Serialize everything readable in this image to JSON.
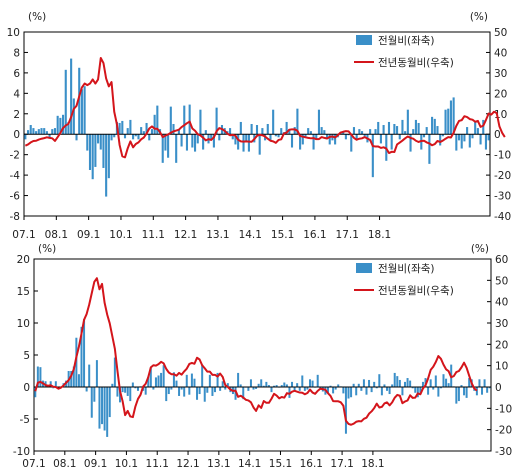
{
  "chart_data": [
    {
      "type": "bar+line",
      "left_unit": "(%)",
      "right_unit": "(%)",
      "x_ticks": [
        "07.1",
        "08.1",
        "09.1",
        "10.1",
        "11.1",
        "12.1",
        "13.1",
        "14.1",
        "15.1",
        "16.1",
        "17.1",
        "18.1"
      ],
      "left_ylim": [
        -8,
        10
      ],
      "left_yticks": [
        "10",
        "8",
        "6",
        "4",
        "2",
        "0",
        "-2",
        "-4",
        "-6",
        "-8"
      ],
      "right_ylim": [
        -40,
        50
      ],
      "right_yticks": [
        "50",
        "40",
        "30",
        "20",
        "10",
        "0",
        "-10",
        "-20",
        "-30",
        "-40"
      ],
      "grid": false,
      "legend_position": "top-right",
      "series": [
        {
          "name": "전월비(좌축)",
          "kind": "bar",
          "axis": "left",
          "color": "#3a8fc8",
          "values": [
            -0.5,
            0.4,
            0.9,
            0.6,
            0.3,
            0.5,
            0.6,
            0.6,
            0.3,
            -0.3,
            0.5,
            0.6,
            1.8,
            1.6,
            1.9,
            6.3,
            1.2,
            7.4,
            3.5,
            -0.6,
            6.5,
            4.4,
            4.7,
            -1.6,
            -3.5,
            -4.4,
            -3.2,
            -0.9,
            -1.5,
            -3.3,
            -6.1,
            -4.3,
            -0.6,
            -0.3,
            1.2,
            1.1,
            1.3,
            -0.4,
            0.6,
            1.4,
            -0.5,
            -0.2,
            -0.5,
            0.7,
            0.3,
            1.1,
            -0.6,
            0.5,
            1.9,
            2.8,
            0.5,
            -2.8,
            -1.6,
            -2.3,
            2.7,
            1.0,
            -2.8,
            0.4,
            -1.2,
            2.8,
            -1.6,
            2.9,
            -1.3,
            -1.7,
            -0.9,
            2.4,
            -1.5,
            0.4,
            -0.9,
            -0.5,
            -1.3,
            2.6,
            -0.6,
            0.9,
            0.6,
            0.3,
            0.6,
            -0.5,
            -1.0,
            -1.5,
            1.2,
            -1.7,
            -0.7,
            -1.7,
            1.0,
            -0.8,
            0.9,
            -2.0,
            0.6,
            -0.6,
            1.0,
            -0.6,
            2.4,
            -0.2,
            -0.3,
            0.6,
            0.2,
            1.2,
            0.5,
            -1.3,
            0.7,
            2.5,
            -1.5,
            -1.0,
            -0.3,
            0.6,
            0.3,
            -1.5,
            -0.5,
            2.4,
            0.7,
            0.4,
            -0.4,
            -1.0,
            -0.6,
            -1.0,
            -0.3,
            0.2,
            0.3,
            -0.5,
            -0.1,
            -1.7,
            0.7,
            -0.5,
            0.5,
            0.3,
            -0.2,
            -0.8,
            0.5,
            -4.2,
            0.5,
            1.2,
            -0.9,
            0.9,
            -2.6,
            1.2,
            -1.5,
            1.0,
            0.8,
            -0.5,
            1.4,
            0.3,
            2.4,
            -1.7,
            0.5,
            1.4,
            1.1,
            -1.5,
            -0.3,
            0.7,
            -2.9,
            1.7,
            1.5,
            0.8,
            -1.1,
            -0.2,
            2.4,
            2.5,
            3.3,
            3.6,
            -1.6,
            -0.6,
            -1.4,
            -0.7,
            0.7,
            -1.3,
            -0.4,
            1.2,
            0.6,
            -1.0,
            1.4,
            -1.5,
            -0.6
          ],
          "mark_color": "#3a8fc8"
        },
        {
          "name": "전년동월비(우축)",
          "kind": "line",
          "axis": "right",
          "color": "#d4151b",
          "values": [
            -5.6,
            -5.0,
            -4.0,
            -3.3,
            -3.2,
            -2.6,
            -2.2,
            -1.9,
            -1.5,
            -1.8,
            -2.0,
            -3.3,
            -1.4,
            0.6,
            3.0,
            4.3,
            5.1,
            8.4,
            12.4,
            13.9,
            18.5,
            22.9,
            24.8,
            24.0,
            24.8,
            26.8,
            24.8,
            26.8,
            37.3,
            34.8,
            27.2,
            23.4,
            25.5,
            11.0,
            4.8,
            -5.3,
            -10.8,
            -11.3,
            -6.9,
            -3.5,
            -6.4,
            -4.8,
            -4.0,
            -2.5,
            -1.6,
            0.3,
            2.8,
            3.8,
            2.7,
            2.7,
            1.0,
            -1.4,
            -0.7,
            -0.1,
            0.7,
            1.4,
            1.8,
            2.2,
            3.5,
            4.4,
            5.4,
            6.2,
            2.8,
            1.7,
            0.0,
            -0.6,
            -1.7,
            -3.0,
            -2.4,
            -2.8,
            -1.5,
            1.5,
            3.0,
            2.5,
            1.7,
            0.3,
            -0.5,
            -0.3,
            -0.7,
            -2.7,
            -3.5,
            -3.6,
            -3.5,
            -3.6,
            -3.7,
            -2.4,
            -0.8,
            -0.3,
            -0.5,
            -1.1,
            -2.2,
            -3.2,
            -3.5,
            -4.2,
            -2.8,
            -2.5,
            0.4,
            0.8,
            2.2,
            2.4,
            2.4,
            1.7,
            -0.8,
            -1.2,
            -1.5,
            -1.8,
            -2.0,
            -1.9,
            -2.4,
            -2.4,
            -1.4,
            -1.8,
            -2.1,
            -1.3,
            -1.1,
            -1.6,
            -0.5,
            0.8,
            1.2,
            1.5,
            1.4,
            -0.2,
            -1.8,
            -2.7,
            -2.2,
            -2.0,
            -1.4,
            -2.1,
            -2.8,
            -5.8,
            -6.0,
            -6.0,
            -6.7,
            -6.4,
            -7.0,
            -9.2,
            -8.6,
            -8.7,
            -5.0,
            -4.1,
            -3.1,
            -2.0,
            -1.1,
            -1.8,
            -2.2,
            -3.2,
            -3.8,
            -3.3,
            -3.2,
            -4.0,
            -4.5,
            -5.4,
            -4.8,
            -3.3,
            -3.8,
            -3.1,
            -2.2,
            -1.4,
            -1.6,
            0.7,
            4.1,
            6.5,
            6.9,
            8.8,
            8.4,
            7.4,
            7.1,
            6.1,
            6.5,
            3.6,
            4.2,
            7.0,
            10.1,
            9.6,
            11.0,
            10.3,
            3.8,
            0.7,
            -1.4
          ],
          "mark_color": "#d4151b"
        }
      ]
    },
    {
      "type": "bar+line",
      "left_unit": "(%)",
      "right_unit": "(%)",
      "x_ticks": [
        "07.1",
        "08.1",
        "09.1",
        "10.1",
        "11.1",
        "12.1",
        "13.1",
        "14.1",
        "15.1",
        "16.1",
        "17.1",
        "18.1"
      ],
      "left_ylim": [
        -10,
        20
      ],
      "left_yticks": [
        "20",
        "15",
        "10",
        "5",
        "0",
        "-5",
        "-10"
      ],
      "right_ylim": [
        -30,
        60
      ],
      "right_yticks": [
        "60",
        "50",
        "40",
        "30",
        "20",
        "10",
        "0",
        "-10",
        "-20",
        "-30"
      ],
      "grid": false,
      "legend_position": "top-right",
      "series": [
        {
          "name": "전월비(좌축)",
          "kind": "bar",
          "axis": "left",
          "color": "#3a8fc8",
          "values": [
            -1.6,
            3.2,
            3.1,
            1.0,
            0.9,
            0.3,
            0.9,
            -0.2,
            0.9,
            -0.3,
            0.0,
            0.6,
            1.0,
            2.5,
            2.5,
            3.2,
            7.7,
            2.0,
            9.4,
            10.6,
            -0.7,
            3.5,
            -4.8,
            -2.3,
            4.2,
            -6.5,
            -5.8,
            -6.8,
            -7.8,
            -4.7,
            0.5,
            4.6,
            -1.5,
            -2.4,
            -0.8,
            -0.9,
            -1.4,
            -2.2,
            0.7,
            -0.2,
            -0.6,
            0.1,
            -0.6,
            -1.2,
            1.6,
            3.0,
            -0.4,
            1.5,
            1.8,
            2.2,
            3.4,
            -2.2,
            -1.1,
            -0.4,
            2.3,
            1.0,
            -1.4,
            -0.4,
            -1.5,
            1.9,
            -1.2,
            2.1,
            1.3,
            -2.0,
            -1.1,
            3.5,
            -2.3,
            -0.9,
            1.9,
            -1.4,
            -0.8,
            2.2,
            -0.6,
            0.9,
            -0.4,
            0.6,
            -0.8,
            -1.1,
            -2.0,
            2.2,
            0.4,
            -1.9,
            -0.1,
            -0.6,
            1.2,
            -0.4,
            -0.3,
            0.5,
            1.2,
            0.2,
            0.8,
            0.3,
            -0.8,
            0.2,
            0.3,
            -0.1,
            0.3,
            0.7,
            0.4,
            -1.7,
            0.8,
            -0.6,
            0.6,
            -0.6,
            1.8,
            -0.6,
            -0.4,
            1.2,
            1.0,
            -0.1,
            1.9,
            -0.2,
            -0.7,
            -1.2,
            -0.9,
            0.2,
            -1.0,
            -0.4,
            0.4,
            0.1,
            -1.0,
            -7.3,
            -1.8,
            -1.6,
            0.5,
            -1.3,
            0.5,
            -0.6,
            1.2,
            -1.2,
            1.1,
            -0.8,
            0.8,
            -0.2,
            2.0,
            -1.3,
            0.4,
            -0.6,
            -1.1,
            0.4,
            2.2,
            1.7,
            1.1,
            -1.3,
            0.8,
            1.4,
            1.0,
            -0.2,
            -0.9,
            -1.6,
            -0.9,
            0.8,
            1.4,
            -1.2,
            1.2,
            -0.4,
            1.8,
            -1.5,
            -0.2,
            2.0,
            1.3,
            0.6,
            3.5,
            0.1,
            -2.6,
            -2.2,
            0.3,
            -1.3,
            -1.7,
            1.4,
            1.2,
            -0.6,
            -1.3,
            1.2,
            -1.2,
            1.2,
            -0.9,
            -0.2
          ],
          "mark_color": "#3a8fc8"
        },
        {
          "name": "전년동월비(우축)",
          "kind": "line",
          "axis": "right",
          "color": "#d4151b",
          "values": [
            -2.0,
            2.0,
            2.4,
            1.7,
            0.9,
            0.6,
            0.8,
            0.1,
            0.0,
            -0.8,
            -0.3,
            0.7,
            2.0,
            3.2,
            5.3,
            8.3,
            14.0,
            19.0,
            25.0,
            31.5,
            34.2,
            38.6,
            44.0,
            49.3,
            51.0,
            45.8,
            48.3,
            39.5,
            34.0,
            29.8,
            23.8,
            17.9,
            7.6,
            -1.9,
            -6.6,
            -13.2,
            -11.2,
            -13.8,
            -14.1,
            -9.1,
            -5.6,
            -3.6,
            0.2,
            1.5,
            4.6,
            9.2,
            10.2,
            10.0,
            10.7,
            11.8,
            11.1,
            8.5,
            6.8,
            6.0,
            6.0,
            5.3,
            6.6,
            5.8,
            7.3,
            8.6,
            10.8,
            11.3,
            10.9,
            13.7,
            12.9,
            10.2,
            8.8,
            7.2,
            7.2,
            5.7,
            5.7,
            4.9,
            6.3,
            4.7,
            0.9,
            0.0,
            -1.2,
            -1.8,
            -1.7,
            -4.6,
            -4.1,
            -4.9,
            -6.0,
            -6.3,
            -7.2,
            -9.6,
            -11.2,
            -8.6,
            -9.8,
            -6.6,
            -7.4,
            -7.4,
            -5.5,
            -3.2,
            -4.0,
            -5.3,
            -4.7,
            -5.0,
            -2.9,
            -3.2,
            -2.2,
            -1.8,
            -2.2,
            -2.6,
            -2.7,
            -3.4,
            -2.8,
            -1.2,
            -2.6,
            -3.2,
            -1.8,
            -0.8,
            -1.0,
            -1.3,
            -2.9,
            -4.2,
            -6.6,
            -6.7,
            -6.7,
            -7.2,
            -8.8,
            -15.8,
            -17.3,
            -17.7,
            -17.2,
            -16.3,
            -16.0,
            -16.1,
            -14.9,
            -14.4,
            -12.5,
            -11.4,
            -9.9,
            -7.8,
            -9.6,
            -9.3,
            -7.7,
            -7.2,
            -8.6,
            -7.2,
            -5.0,
            -3.7,
            -4.1,
            -7.6,
            -6.8,
            -6.3,
            -3.9,
            -5.1,
            -5.0,
            -3.0,
            -3.4,
            -0.7,
            0.8,
            4.0,
            8.0,
            9.5,
            11.7,
            14.5,
            13.2,
            10.5,
            8.3,
            7.4,
            4.6,
            5.1,
            7.0,
            7.5,
            9.2,
            11.4,
            9.0,
            5.3,
            1.7,
            -0.7,
            -1.7
          ],
          "mark_color": "#d4151b"
        }
      ]
    }
  ]
}
